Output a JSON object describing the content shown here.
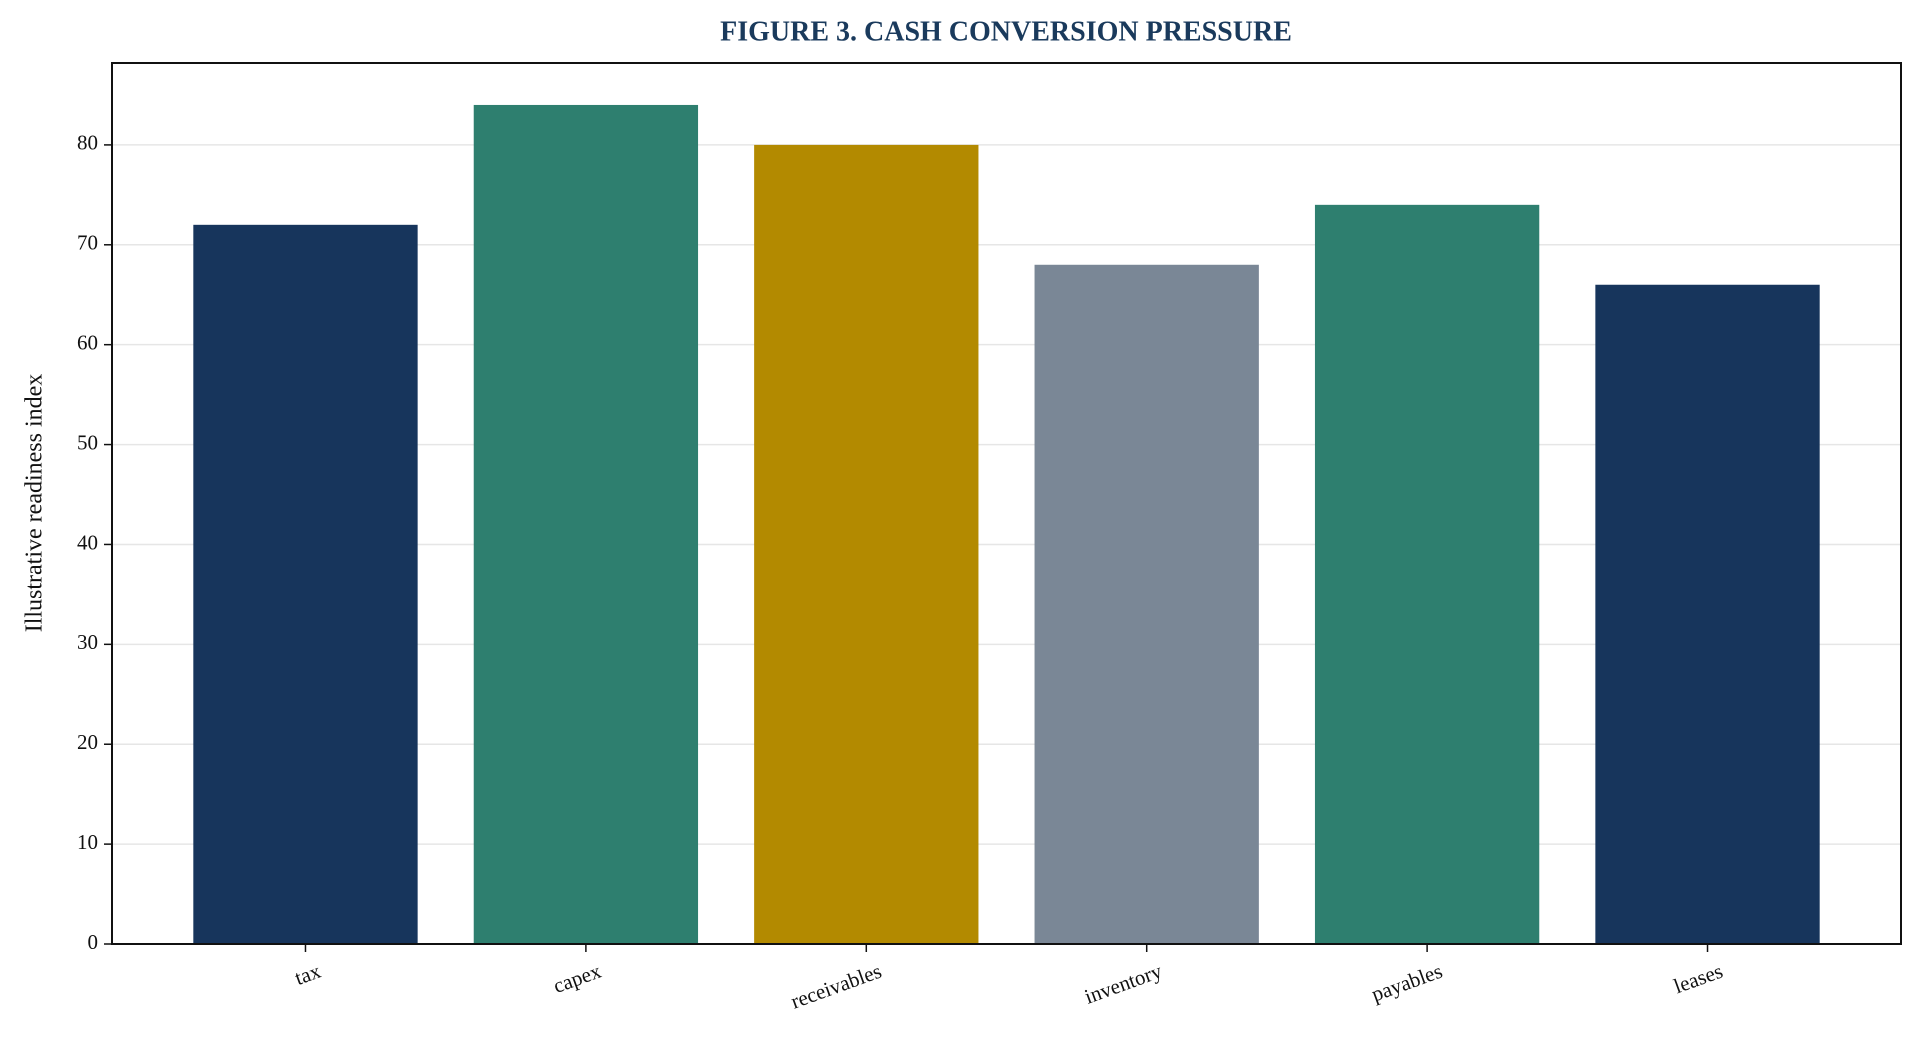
{
  "chart_data": {
    "type": "bar",
    "title": "FIGURE 3. CASH CONVERSION PRESSURE",
    "y_label": "Illustrative readiness index",
    "categories": [
      "tax",
      "capex",
      "receivables",
      "inventory",
      "payables",
      "leases"
    ],
    "values": [
      72,
      84,
      80,
      68,
      74,
      66
    ],
    "colors": [
      "#17355c",
      "#2e7f6f",
      "#b38a00",
      "#7a8796",
      "#2e7f6f",
      "#17355c"
    ],
    "ylim": [
      0,
      88.2
    ],
    "yticks": [
      0,
      10,
      20,
      30,
      40,
      50,
      60,
      70,
      80
    ],
    "grid": true
  }
}
